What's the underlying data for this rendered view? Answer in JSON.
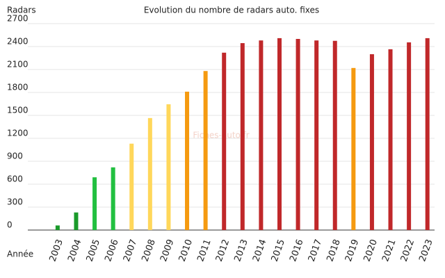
{
  "chart_data": {
    "type": "bar",
    "title": "Evolution du nombre de radars auto. fixes",
    "ylabel": "Radars",
    "xlabel": "Année",
    "watermark": "Fiches-auto.fr",
    "categories": [
      null,
      "2003",
      "2004",
      "2005",
      "2006",
      "2007",
      "2008",
      "2009",
      "2010",
      "2011",
      "2012",
      "2013",
      "2014",
      "2015",
      "2016",
      "2017",
      "2018",
      "2019",
      "2020",
      "2021",
      "2022",
      "2023"
    ],
    "values": [
      null,
      60,
      230,
      690,
      820,
      1130,
      1465,
      1645,
      1810,
      2080,
      2320,
      2445,
      2480,
      2510,
      2500,
      2480,
      2475,
      2120,
      2300,
      2365,
      2455,
      2510
    ],
    "colors": [
      null,
      "#1a9a2a",
      "#1a9a2a",
      "#22c040",
      "#22c040",
      "#ffd75a",
      "#ffd75a",
      "#ffd75a",
      "#f59a10",
      "#f59a10",
      "#c0282a",
      "#c0282a",
      "#c0282a",
      "#c0282a",
      "#c0282a",
      "#c0282a",
      "#c0282a",
      "#f59a10",
      "#c0282a",
      "#c0282a",
      "#c0282a",
      "#c0282a"
    ],
    "ylim": [
      0,
      2700
    ],
    "yticks": [
      0,
      300,
      600,
      900,
      1200,
      1500,
      1800,
      2100,
      2400,
      2700
    ],
    "grid": true
  }
}
